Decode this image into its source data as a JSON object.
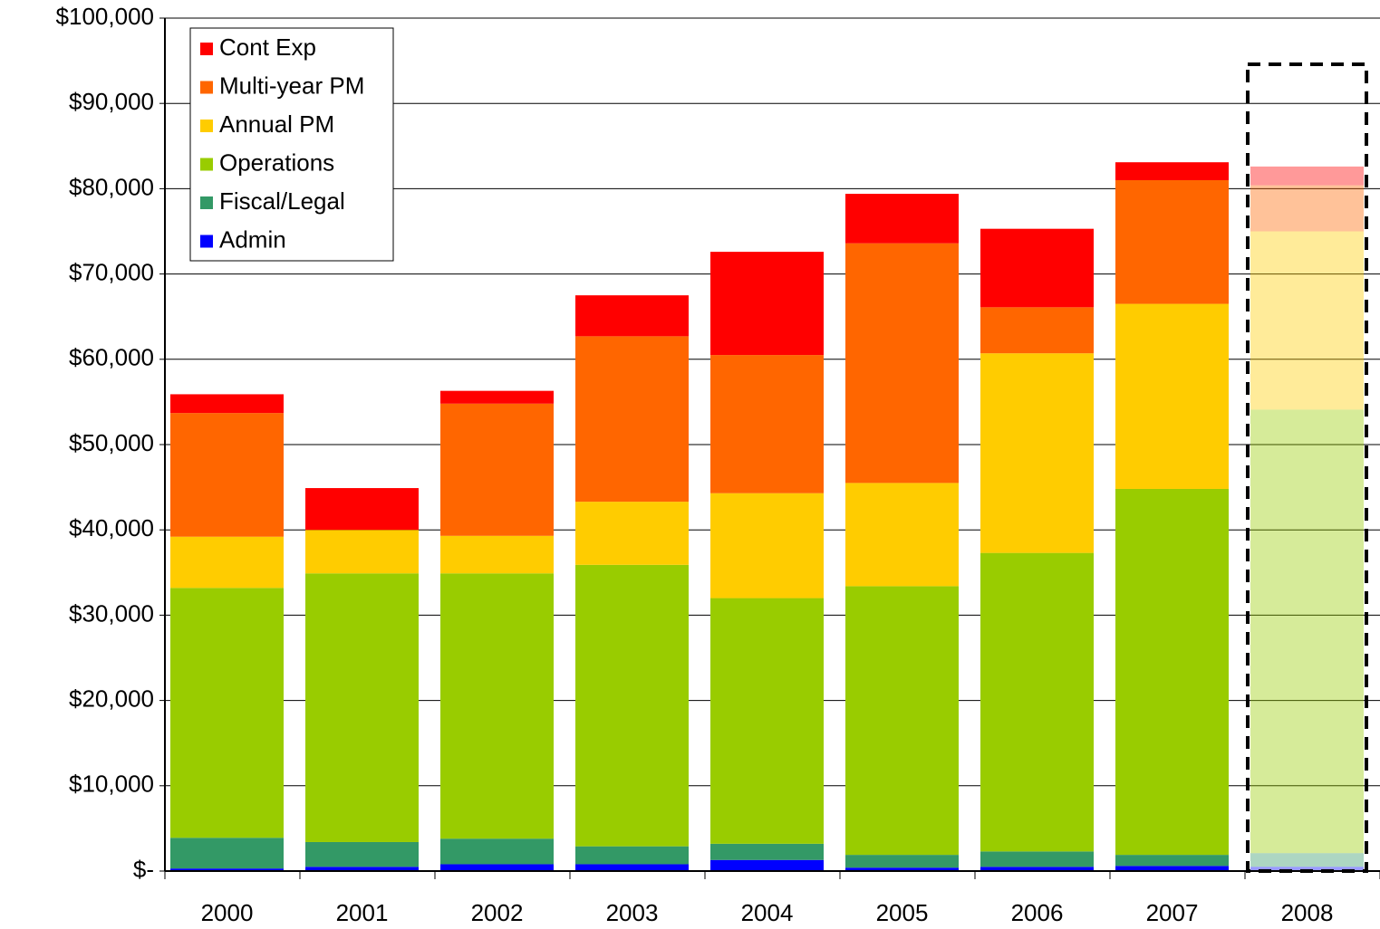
{
  "chart_data": {
    "type": "stacked_bar",
    "categories": [
      "2000",
      "2001",
      "2002",
      "2003",
      "2004",
      "2005",
      "2006",
      "2007",
      "2008"
    ],
    "series": [
      {
        "name": "Admin",
        "color": "#0000ff",
        "values": [
          300,
          500,
          800,
          800,
          1300,
          400,
          500,
          600,
          500
        ]
      },
      {
        "name": "Fiscal/Legal",
        "color": "#339966",
        "values": [
          3600,
          2900,
          3000,
          2100,
          1900,
          1500,
          1800,
          1300,
          1600
        ]
      },
      {
        "name": "Operations",
        "color": "#99cc00",
        "values": [
          29300,
          31500,
          31100,
          33000,
          28800,
          31500,
          35000,
          42900,
          52000
        ]
      },
      {
        "name": "Annual PM",
        "color": "#ffcc00",
        "values": [
          6000,
          5100,
          4400,
          7400,
          12300,
          12100,
          23400,
          21700,
          20900
        ]
      },
      {
        "name": "Multi-year PM",
        "color": "#ff6600",
        "values": [
          14500,
          0,
          15500,
          19400,
          16200,
          28100,
          5400,
          14500,
          5400
        ]
      },
      {
        "name": "Cont Exp",
        "color": "#ff0000",
        "values": [
          2200,
          4900,
          1500,
          4800,
          12100,
          5800,
          9200,
          2100,
          2200
        ]
      }
    ],
    "ylim": [
      0,
      100000
    ],
    "yticks": [
      {
        "value": 0,
        "label": "$-"
      },
      {
        "value": 10000,
        "label": "$10,000"
      },
      {
        "value": 20000,
        "label": "$20,000"
      },
      {
        "value": 30000,
        "label": "$30,000"
      },
      {
        "value": 40000,
        "label": "$40,000"
      },
      {
        "value": 50000,
        "label": "$50,000"
      },
      {
        "value": 60000,
        "label": "$60,000"
      },
      {
        "value": 70000,
        "label": "$70,000"
      },
      {
        "value": 80000,
        "label": "$80,000"
      },
      {
        "value": 90000,
        "label": "$90,000"
      },
      {
        "value": 100000,
        "label": "$100,000"
      }
    ],
    "grid": true,
    "legend": "upper left"
  }
}
